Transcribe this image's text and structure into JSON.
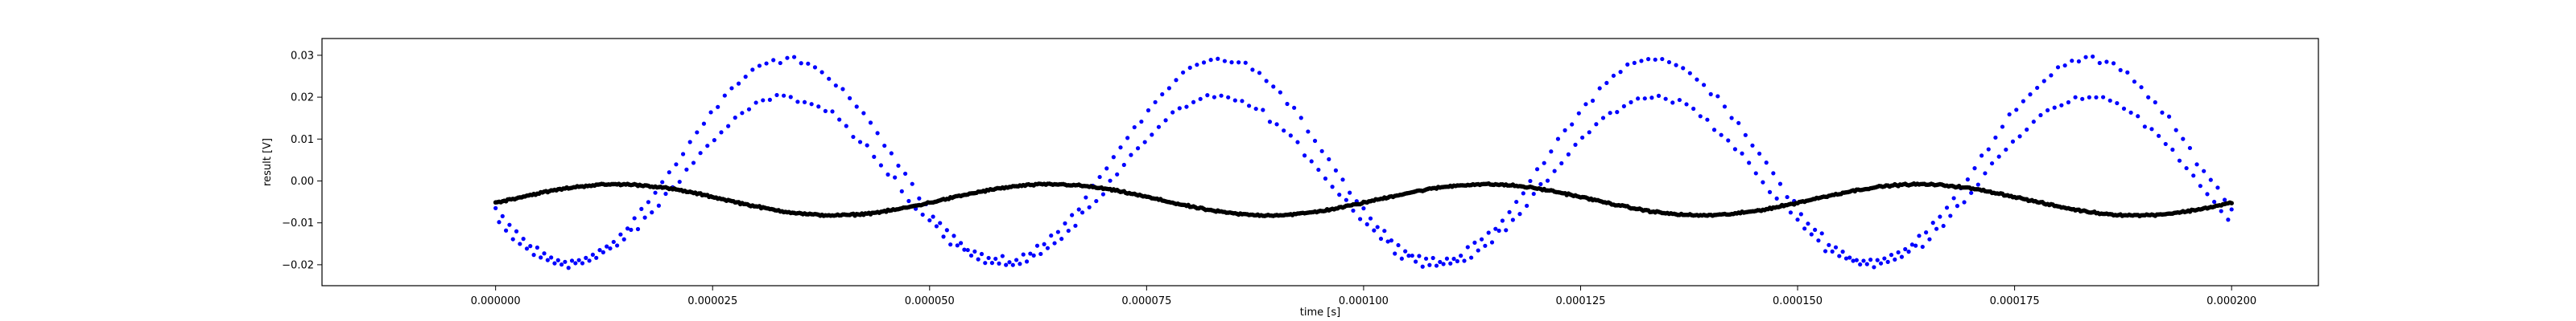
{
  "chart_data": {
    "type": "scatter",
    "title": "",
    "xlabel": "time [s]",
    "ylabel": "result [V]",
    "xlim": [
      -2e-05,
      0.00021
    ],
    "ylim": [
      -0.025,
      0.034
    ],
    "grid": false,
    "x_ticks": [
      0.0,
      2.5e-05,
      5e-05,
      7.5e-05,
      0.0001,
      0.000125,
      0.00015,
      0.000175,
      0.0002
    ],
    "x_tick_labels": [
      "0.000000",
      "0.000025",
      "0.000050",
      "0.000075",
      "0.000100",
      "0.000125",
      "0.000150",
      "0.000175",
      "0.000200"
    ],
    "y_ticks": [
      -0.02,
      -0.01,
      0.0,
      0.01,
      0.02,
      0.03
    ],
    "y_tick_labels": [
      "−0.02",
      "−0.01",
      "0.00",
      "0.01",
      "0.02",
      "0.03"
    ],
    "series": [
      {
        "color": "#0000ff",
        "marker": "dot",
        "x_start": 0.0,
        "x_end": 0.0002,
        "x_step": 4e-07,
        "pattern": "two interleaved noisy sinusoids, period 0.00005 s",
        "upper_envelope": {
          "amplitude": 0.024,
          "offset": 0.005,
          "peak_time": 3.35e-05,
          "noise": 0.0012
        },
        "lower_envelope": {
          "amplitude": 0.02,
          "offset": 0.0,
          "peak_time": 3.35e-05,
          "noise": 0.0012
        },
        "y_min": -0.022,
        "y_max": 0.031
      },
      {
        "color": "#000000",
        "marker": "dot",
        "x_start": 0.0,
        "x_end": 0.0002,
        "x_step": 2e-07,
        "pattern": "slow oscillation, period 0.00005 s",
        "amplitude": 0.0037,
        "offset": -0.0045,
        "peak_time": 1.4e-05,
        "noise": 0.0003,
        "y_min": -0.0085,
        "y_max": -0.0005
      }
    ]
  }
}
